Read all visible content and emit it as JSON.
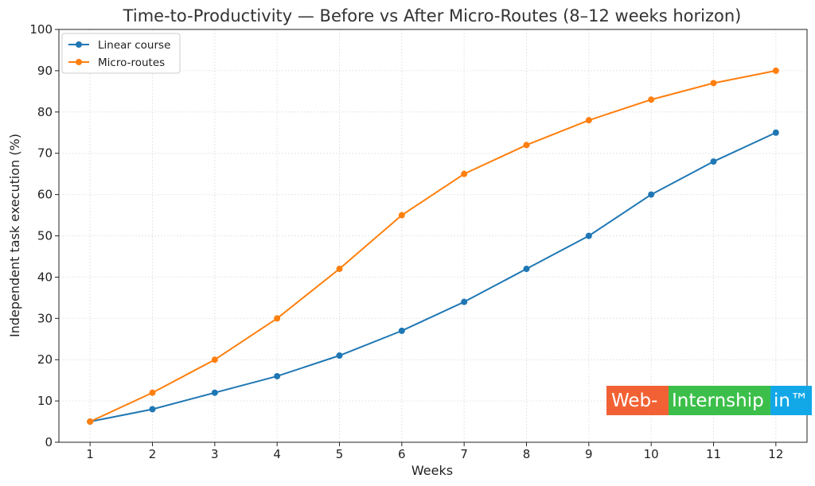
{
  "chart_data": {
    "type": "line",
    "title": "Time-to-Productivity — Before vs After Micro-Routes (8–12 weeks horizon)",
    "xlabel": "Weeks",
    "ylabel": "Independent task execution (%)",
    "x": [
      1,
      2,
      3,
      4,
      5,
      6,
      7,
      8,
      9,
      10,
      11,
      12
    ],
    "xlim": [
      0.5,
      12.5
    ],
    "ylim": [
      0,
      100
    ],
    "yticks": [
      0,
      10,
      20,
      30,
      40,
      50,
      60,
      70,
      80,
      90,
      100
    ],
    "grid": true,
    "legend_position": "top-left",
    "series": [
      {
        "name": "Linear course",
        "color": "#1f77b4",
        "values": [
          5,
          8,
          12,
          16,
          21,
          27,
          34,
          42,
          50,
          60,
          68,
          75
        ]
      },
      {
        "name": "Micro-routes",
        "color": "#ff7f0e",
        "values": [
          5,
          12,
          20,
          30,
          42,
          55,
          65,
          72,
          78,
          83,
          87,
          90
        ]
      }
    ]
  },
  "watermark": {
    "part1": "Web-",
    "part2": "Internship",
    "part3": "in™",
    "colors": [
      "#f26134",
      "#3cbf4a",
      "#12a8e8"
    ]
  }
}
